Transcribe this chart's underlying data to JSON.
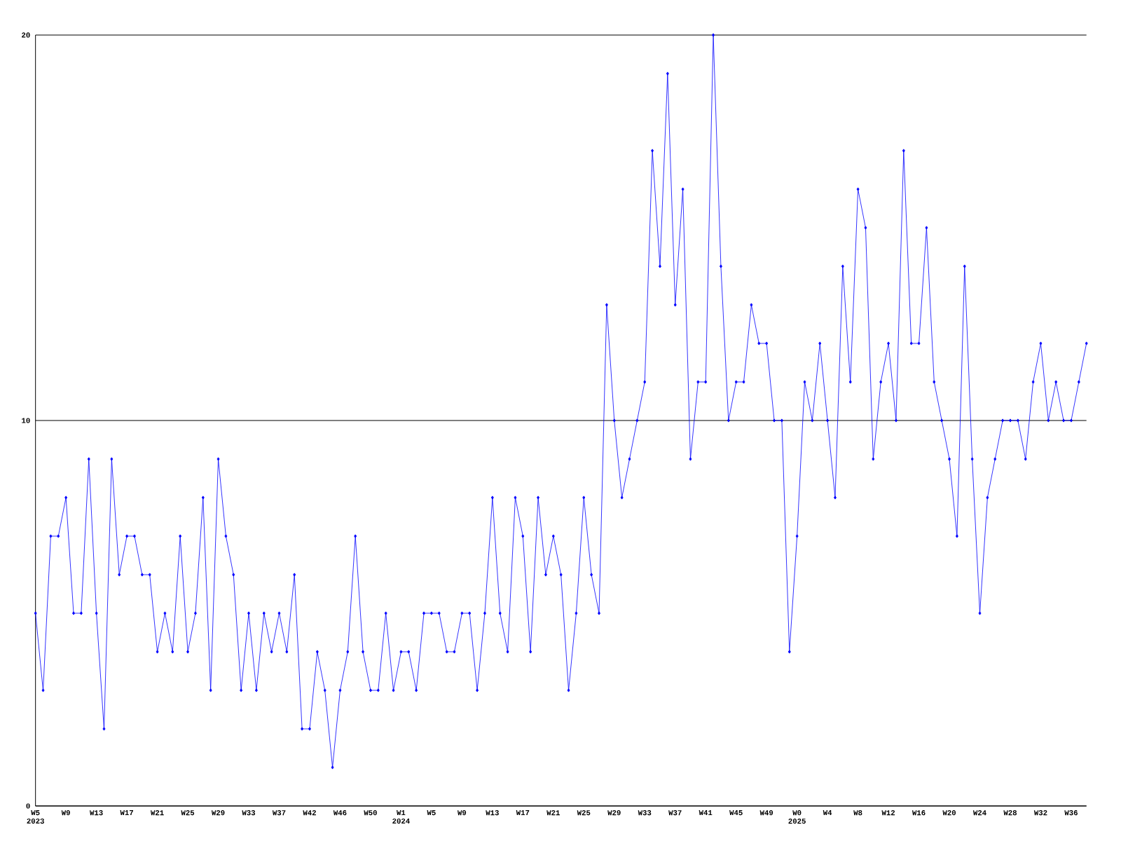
{
  "chart_data": {
    "type": "line",
    "color": "#0000ff",
    "marker": "diamond",
    "line_style": "solid",
    "grid": "y",
    "ylim": [
      0,
      20
    ],
    "yticks": [
      0,
      10,
      20
    ],
    "categories": [
      "W5 2023",
      null,
      null,
      null,
      "W9",
      null,
      null,
      null,
      "W13",
      null,
      null,
      null,
      "W17",
      null,
      null,
      null,
      "W21",
      null,
      null,
      null,
      "W25",
      null,
      null,
      null,
      "W29",
      null,
      null,
      null,
      "W33",
      null,
      null,
      null,
      "W37",
      null,
      null,
      null,
      "W42",
      null,
      null,
      null,
      "W46",
      null,
      null,
      null,
      "W50",
      null,
      null,
      null,
      "W1 2024",
      null,
      null,
      null,
      "W5",
      null,
      null,
      null,
      "W9",
      null,
      null,
      null,
      "W13",
      null,
      null,
      null,
      "W17",
      null,
      null,
      null,
      "W21",
      null,
      null,
      null,
      "W25",
      null,
      null,
      null,
      "W29",
      null,
      null,
      null,
      "W33",
      null,
      null,
      null,
      "W37",
      null,
      null,
      null,
      "W41",
      null,
      null,
      null,
      "W45",
      null,
      null,
      null,
      "W49",
      null,
      null,
      null,
      "W0 2025",
      null,
      null,
      null,
      "W4",
      null,
      null,
      null,
      "W8",
      null,
      null,
      null,
      "W12",
      null,
      null,
      null,
      "W16",
      null,
      null,
      null,
      "W20",
      null,
      null,
      null,
      "W24",
      null,
      null,
      null,
      "W28",
      null,
      null,
      null,
      "W32",
      null,
      null,
      null,
      "W36",
      null,
      null
    ],
    "values": [
      5,
      3,
      7,
      7,
      8,
      5,
      5,
      9,
      5,
      2,
      9,
      6,
      7,
      7,
      6,
      6,
      4,
      5,
      4,
      7,
      4,
      5,
      8,
      3,
      9,
      7,
      6,
      3,
      5,
      3,
      5,
      4,
      5,
      4,
      6,
      2,
      2,
      4,
      3,
      1,
      3,
      4,
      7,
      4,
      3,
      3,
      5,
      3,
      4,
      4,
      3,
      5,
      5,
      5,
      4,
      4,
      5,
      5,
      3,
      5,
      8,
      5,
      4,
      8,
      7,
      4,
      8,
      6,
      7,
      6,
      3,
      5,
      8,
      6,
      5,
      13,
      10,
      8,
      9,
      10,
      11,
      17,
      14,
      19,
      13,
      16,
      9,
      11,
      11,
      20,
      14,
      10,
      11,
      11,
      13,
      12,
      12,
      10,
      10,
      4,
      7,
      11,
      10,
      12,
      10,
      8,
      14,
      11,
      16,
      15,
      9,
      11,
      12,
      10,
      17,
      12,
      12,
      15,
      11,
      10,
      9,
      7,
      14,
      9,
      5,
      8,
      9,
      10,
      10,
      10,
      9,
      11,
      12,
      10,
      11,
      10,
      10,
      11,
      12
    ]
  }
}
